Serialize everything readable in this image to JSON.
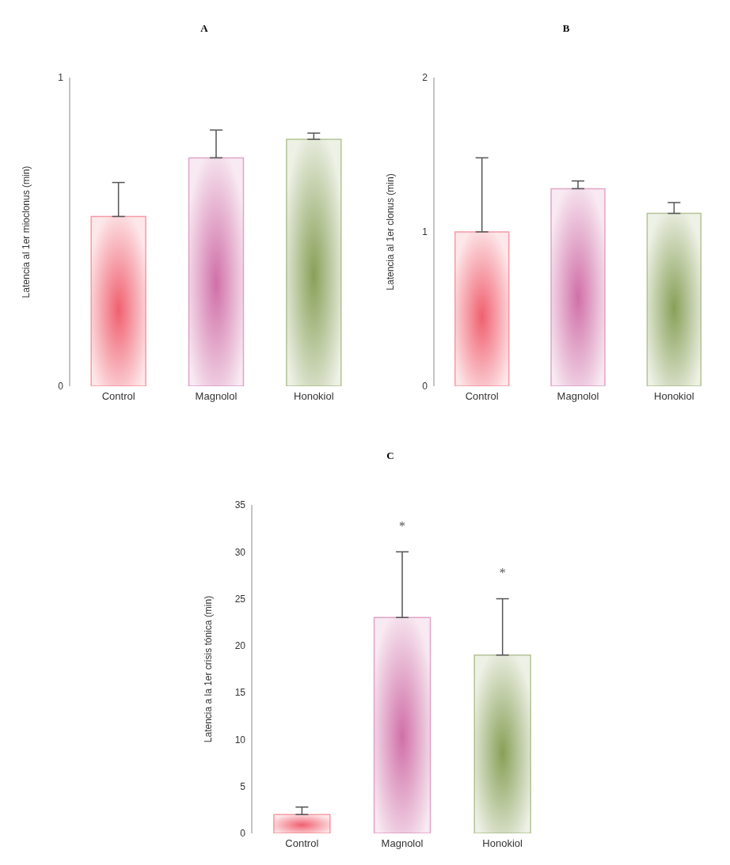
{
  "chart_data": [
    {
      "type": "bar",
      "title": "A",
      "ylabel": "Latencia al 1er mioclonus (min)",
      "categories": [
        "Control",
        "Magnolol",
        "Honokiol"
      ],
      "values": [
        0.55,
        0.74,
        0.8
      ],
      "errors": [
        [
          0.55,
          0.66
        ],
        [
          0.74,
          0.83
        ],
        [
          0.8,
          0.82
        ]
      ],
      "colors": [
        "#f06070",
        "#d070a8",
        "#88a058"
      ],
      "ylim": [
        0,
        1
      ],
      "yticks": [
        0,
        1
      ],
      "grid": false
    },
    {
      "type": "bar",
      "title": "B",
      "ylabel": "Latencia al 1er clonus (min)",
      "categories": [
        "Control",
        "Magnolol",
        "Honokiol"
      ],
      "values": [
        1.0,
        1.28,
        1.12
      ],
      "errors": [
        [
          1.0,
          1.48
        ],
        [
          1.28,
          1.33
        ],
        [
          1.12,
          1.19
        ]
      ],
      "colors": [
        "#f06070",
        "#d070a8",
        "#88a058"
      ],
      "ylim": [
        0,
        2
      ],
      "yticks": [
        0,
        1,
        2
      ],
      "grid": false
    },
    {
      "type": "bar",
      "title": "C",
      "ylabel": "Latencia a la 1er crisis tónica (min)",
      "categories": [
        "Control",
        "Magnolol",
        "Honokiol"
      ],
      "values": [
        2,
        23,
        19
      ],
      "errors": [
        [
          2,
          2.8
        ],
        [
          23,
          30
        ],
        [
          19,
          25
        ]
      ],
      "colors": [
        "#f06070",
        "#d070a8",
        "#88a058"
      ],
      "ylim": [
        0,
        35
      ],
      "yticks": [
        0,
        5,
        10,
        15,
        20,
        25,
        30,
        35
      ],
      "grid": false,
      "annotations": [
        "*",
        "*"
      ]
    }
  ]
}
